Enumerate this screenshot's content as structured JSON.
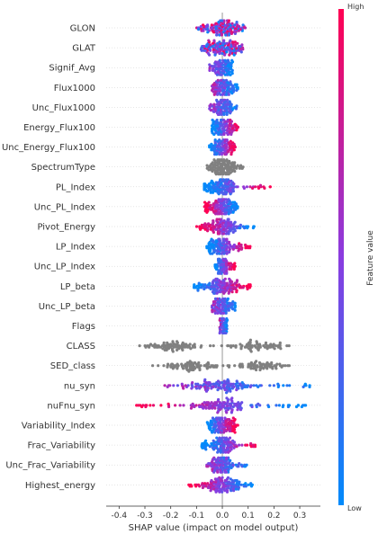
{
  "chart_data": {
    "type": "scatter",
    "subtype": "beeswarm",
    "xlabel": "SHAP value (impact on model output)",
    "xlim": [
      -0.45,
      0.38
    ],
    "xticks": [
      "-0.4",
      "-0.3",
      "-0.2",
      "-0.1",
      "0.0",
      "0.1",
      "0.2",
      "0.3"
    ],
    "xtick_values": [
      -0.4,
      -0.3,
      -0.2,
      -0.1,
      0.0,
      0.1,
      0.2,
      0.3
    ],
    "colorbar": {
      "label": "Feature value",
      "high": "High",
      "low": "Low",
      "high_color": "#ff0052",
      "low_color": "#008bfb"
    },
    "colors": {
      "gray": "#808080",
      "axis": "#999999"
    },
    "features": [
      {
        "name": "GLON",
        "min": -0.1,
        "max": 0.09,
        "spread": 0.06,
        "color": "mixed"
      },
      {
        "name": "GLAT",
        "min": -0.09,
        "max": 0.08,
        "spread": 0.06,
        "color": "mixed"
      },
      {
        "name": "Signif_Avg",
        "min": -0.05,
        "max": 0.04,
        "spread": 0.03,
        "color": "lowpos"
      },
      {
        "name": "Flux1000",
        "min": -0.04,
        "max": 0.06,
        "spread": 0.03,
        "color": "lowpos"
      },
      {
        "name": "Unc_Flux1000",
        "min": -0.05,
        "max": 0.06,
        "spread": 0.03,
        "color": "lowpos"
      },
      {
        "name": "Energy_Flux100",
        "min": -0.04,
        "max": 0.07,
        "spread": 0.04,
        "color": "highpos"
      },
      {
        "name": "Unc_Energy_Flux100",
        "min": -0.05,
        "max": 0.06,
        "spread": 0.03,
        "color": "highpos"
      },
      {
        "name": "SpectrumType",
        "min": -0.06,
        "max": 0.09,
        "spread": 0.04,
        "color": "gray"
      },
      {
        "name": "PL_Index",
        "min": -0.07,
        "max": 0.19,
        "spread": 0.06,
        "color": "highpos"
      },
      {
        "name": "Unc_PL_Index",
        "min": -0.07,
        "max": 0.06,
        "spread": 0.04,
        "color": "highneg"
      },
      {
        "name": "Pivot_Energy",
        "min": -0.1,
        "max": 0.13,
        "spread": 0.06,
        "color": "highneg"
      },
      {
        "name": "LP_Index",
        "min": -0.06,
        "max": 0.11,
        "spread": 0.05,
        "color": "highpos"
      },
      {
        "name": "Unc_LP_Index",
        "min": -0.03,
        "max": 0.05,
        "spread": 0.02,
        "color": "highpos"
      },
      {
        "name": "LP_beta",
        "min": -0.11,
        "max": 0.11,
        "spread": 0.06,
        "color": "highpos"
      },
      {
        "name": "Unc_LP_beta",
        "min": -0.04,
        "max": 0.05,
        "spread": 0.03,
        "color": "lowpos"
      },
      {
        "name": "Flags",
        "min": -0.01,
        "max": 0.02,
        "spread": 0.01,
        "color": "lowpos"
      },
      {
        "name": "CLASS",
        "min": -0.42,
        "max": 0.26,
        "spread": 0.1,
        "color": "grayclass"
      },
      {
        "name": "SED_class",
        "min": -0.27,
        "max": 0.3,
        "spread": 0.1,
        "color": "grayclass"
      },
      {
        "name": "nu_syn",
        "min": -0.24,
        "max": 0.35,
        "spread": 0.12,
        "color": "lowpos"
      },
      {
        "name": "nuFnu_syn",
        "min": -0.36,
        "max": 0.34,
        "spread": 0.14,
        "color": "highneg"
      },
      {
        "name": "Variability_Index",
        "min": -0.06,
        "max": 0.06,
        "spread": 0.04,
        "color": "highpos"
      },
      {
        "name": "Frac_Variability",
        "min": -0.08,
        "max": 0.14,
        "spread": 0.05,
        "color": "highpos"
      },
      {
        "name": "Unc_Frac_Variability",
        "min": -0.06,
        "max": 0.1,
        "spread": 0.04,
        "color": "lowpos"
      },
      {
        "name": "Highest_energy",
        "min": -0.13,
        "max": 0.12,
        "spread": 0.06,
        "color": "highneg"
      }
    ]
  }
}
